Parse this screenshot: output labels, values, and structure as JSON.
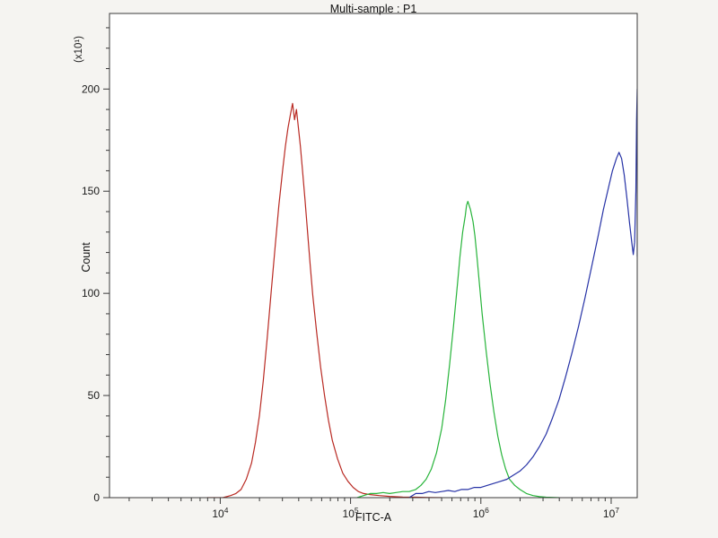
{
  "chart_data": {
    "type": "line",
    "title": "Multi-sample : P1",
    "xlabel": "FITC-A",
    "ylabel": "Count",
    "y_multiplier_label": "(x10¹)",
    "x_scale": "log10",
    "xlim_log10": [
      3.15,
      7.2
    ],
    "ylim": [
      0,
      237
    ],
    "grid": false,
    "legend": "none",
    "x_ticks": [
      {
        "log10": 4,
        "base": "10",
        "exp": "4"
      },
      {
        "log10": 5,
        "base": "10",
        "exp": "5"
      },
      {
        "log10": 6,
        "base": "10",
        "exp": "6"
      },
      {
        "log10": 7,
        "base": "10",
        "exp": "7"
      }
    ],
    "y_ticks": [
      {
        "value": 0,
        "label": "0"
      },
      {
        "value": 50,
        "label": "50"
      },
      {
        "value": 100,
        "label": "100"
      },
      {
        "value": 150,
        "label": "150"
      },
      {
        "value": 200,
        "label": "200"
      }
    ],
    "series": [
      {
        "name": "red-sample",
        "color": "#b92a23",
        "peak": {
          "x_log10": 4.555,
          "count": 193
        },
        "points": [
          [
            3.9,
            0
          ],
          [
            4.02,
            0
          ],
          [
            4.08,
            1
          ],
          [
            4.12,
            2
          ],
          [
            4.16,
            4
          ],
          [
            4.2,
            9
          ],
          [
            4.24,
            17
          ],
          [
            4.27,
            27
          ],
          [
            4.3,
            40
          ],
          [
            4.33,
            57
          ],
          [
            4.36,
            78
          ],
          [
            4.39,
            100
          ],
          [
            4.42,
            122
          ],
          [
            4.45,
            143
          ],
          [
            4.48,
            161
          ],
          [
            4.5,
            172
          ],
          [
            4.52,
            181
          ],
          [
            4.54,
            188
          ],
          [
            4.555,
            193
          ],
          [
            4.57,
            185
          ],
          [
            4.585,
            190
          ],
          [
            4.6,
            181
          ],
          [
            4.615,
            172
          ],
          [
            4.63,
            161
          ],
          [
            4.65,
            146
          ],
          [
            4.67,
            130
          ],
          [
            4.69,
            114
          ],
          [
            4.71,
            99
          ],
          [
            4.74,
            81
          ],
          [
            4.77,
            64
          ],
          [
            4.8,
            50
          ],
          [
            4.83,
            38
          ],
          [
            4.86,
            28
          ],
          [
            4.9,
            19
          ],
          [
            4.94,
            12
          ],
          [
            4.98,
            8
          ],
          [
            5.02,
            5
          ],
          [
            5.06,
            3
          ],
          [
            5.1,
            2
          ],
          [
            5.15,
            1.5
          ],
          [
            5.22,
            1
          ],
          [
            5.3,
            0.6
          ],
          [
            5.4,
            0.3
          ],
          [
            5.5,
            0.2
          ],
          [
            5.6,
            0.1
          ],
          [
            5.7,
            0
          ]
        ]
      },
      {
        "name": "green-sample",
        "color": "#27b43a",
        "peak": {
          "x_log10": 5.9,
          "count": 145
        },
        "points": [
          [
            5.05,
            0
          ],
          [
            5.1,
            1
          ],
          [
            5.15,
            2
          ],
          [
            5.2,
            2
          ],
          [
            5.25,
            2.5
          ],
          [
            5.3,
            2
          ],
          [
            5.35,
            2.5
          ],
          [
            5.4,
            3
          ],
          [
            5.45,
            3
          ],
          [
            5.5,
            4
          ],
          [
            5.54,
            6
          ],
          [
            5.58,
            9
          ],
          [
            5.62,
            14
          ],
          [
            5.66,
            22
          ],
          [
            5.7,
            34
          ],
          [
            5.73,
            48
          ],
          [
            5.76,
            65
          ],
          [
            5.79,
            84
          ],
          [
            5.82,
            104
          ],
          [
            5.84,
            118
          ],
          [
            5.86,
            130
          ],
          [
            5.88,
            138
          ],
          [
            5.89,
            143
          ],
          [
            5.9,
            145
          ],
          [
            5.92,
            141
          ],
          [
            5.94,
            135
          ],
          [
            5.955,
            128
          ],
          [
            5.97,
            118
          ],
          [
            5.99,
            104
          ],
          [
            6.01,
            90
          ],
          [
            6.04,
            72
          ],
          [
            6.07,
            56
          ],
          [
            6.1,
            42
          ],
          [
            6.13,
            30
          ],
          [
            6.16,
            21
          ],
          [
            6.19,
            14
          ],
          [
            6.22,
            9
          ],
          [
            6.26,
            6
          ],
          [
            6.3,
            4
          ],
          [
            6.35,
            2
          ],
          [
            6.4,
            1
          ],
          [
            6.45,
            0.5
          ],
          [
            6.5,
            0.2
          ],
          [
            6.6,
            0
          ]
        ]
      },
      {
        "name": "blue-sample",
        "color": "#2632a6",
        "peak": {
          "x_log10": 7.06,
          "count": 169
        },
        "points": [
          [
            5.45,
            0
          ],
          [
            5.5,
            2
          ],
          [
            5.55,
            2
          ],
          [
            5.6,
            3
          ],
          [
            5.65,
            2.5
          ],
          [
            5.7,
            3
          ],
          [
            5.75,
            3.5
          ],
          [
            5.8,
            3
          ],
          [
            5.85,
            4
          ],
          [
            5.9,
            4
          ],
          [
            5.95,
            5
          ],
          [
            6.0,
            5
          ],
          [
            6.05,
            6
          ],
          [
            6.1,
            7
          ],
          [
            6.15,
            8
          ],
          [
            6.2,
            9
          ],
          [
            6.25,
            11
          ],
          [
            6.3,
            13
          ],
          [
            6.35,
            16
          ],
          [
            6.4,
            20
          ],
          [
            6.45,
            25
          ],
          [
            6.5,
            31
          ],
          [
            6.55,
            39
          ],
          [
            6.6,
            48
          ],
          [
            6.65,
            59
          ],
          [
            6.7,
            71
          ],
          [
            6.75,
            84
          ],
          [
            6.8,
            98
          ],
          [
            6.85,
            113
          ],
          [
            6.9,
            128
          ],
          [
            6.94,
            141
          ],
          [
            6.98,
            152
          ],
          [
            7.01,
            160
          ],
          [
            7.04,
            166
          ],
          [
            7.06,
            169
          ],
          [
            7.08,
            166
          ],
          [
            7.1,
            158
          ],
          [
            7.12,
            147
          ],
          [
            7.14,
            135
          ],
          [
            7.16,
            124
          ],
          [
            7.17,
            119
          ],
          [
            7.18,
            125
          ],
          [
            7.19,
            150
          ],
          [
            7.195,
            185
          ],
          [
            7.2,
            200
          ],
          [
            7.2,
            118
          ]
        ]
      }
    ]
  }
}
